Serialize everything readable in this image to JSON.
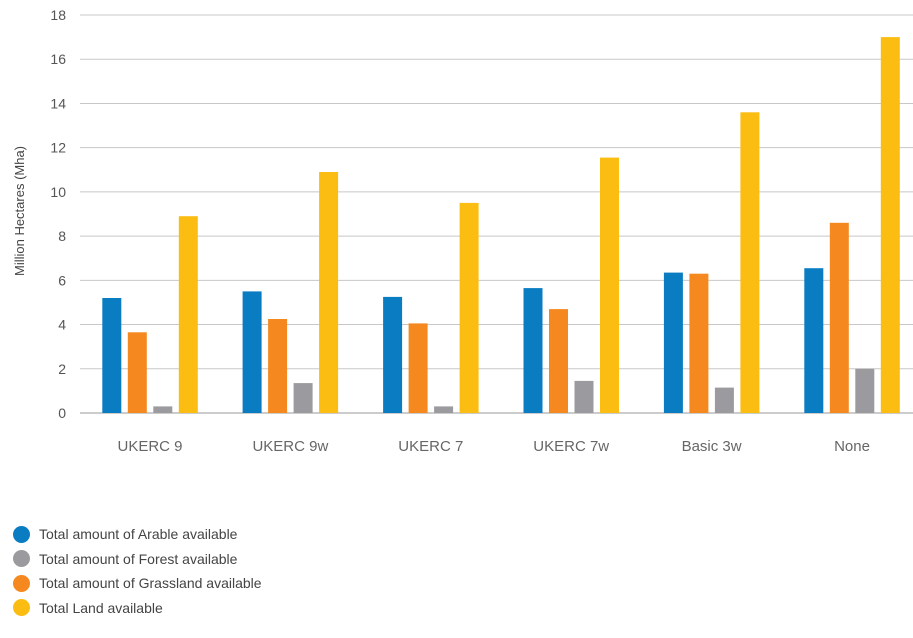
{
  "chart_data": {
    "type": "bar",
    "title": "",
    "xlabel": "",
    "ylabel": "Million Hectares (Mha)",
    "ylim": [
      0,
      18
    ],
    "yticks": [
      0,
      2,
      4,
      6,
      8,
      10,
      12,
      14,
      16,
      18
    ],
    "grid": true,
    "legend_position": "bottom-left",
    "categories": [
      "UKERC 9",
      "UKERC 9w",
      "UKERC 7",
      "UKERC 7w",
      "Basic 3w",
      "None"
    ],
    "series": [
      {
        "name": "Total amount of Arable available",
        "color": "#0a7dc2",
        "values": [
          5.2,
          5.5,
          5.25,
          5.65,
          6.35,
          6.55
        ]
      },
      {
        "name": "Total amount of Grassland available",
        "color": "#f5891f",
        "values": [
          3.65,
          4.25,
          4.05,
          4.7,
          6.3,
          8.6
        ]
      },
      {
        "name": "Total amount of Forest available",
        "color": "#9b9a9e",
        "values": [
          0.3,
          1.35,
          0.3,
          1.45,
          1.15,
          2.0
        ]
      },
      {
        "name": "Total Land available",
        "color": "#fcbd12",
        "values": [
          8.9,
          10.9,
          9.5,
          11.55,
          13.6,
          17.0
        ]
      }
    ],
    "legend_order": [
      {
        "label": "Total amount of Arable available",
        "color": "#0a7dc2"
      },
      {
        "label": "Total amount of Forest available",
        "color": "#9b9a9e"
      },
      {
        "label": "Total amount of Grassland available",
        "color": "#f5891f"
      },
      {
        "label": "Total Land available",
        "color": "#fcbd12"
      }
    ]
  }
}
